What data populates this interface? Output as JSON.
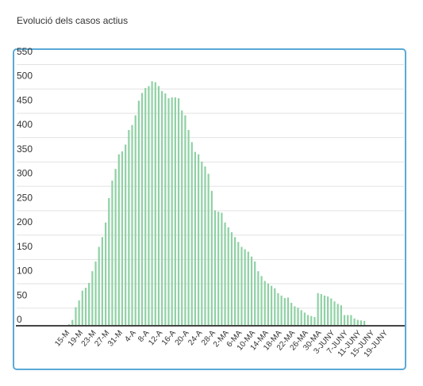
{
  "title": "Evolució dels casos actius",
  "chart_data": {
    "type": "bar",
    "title": "Evolució dels casos actius",
    "xlabel": "",
    "ylabel": "",
    "ylim": [
      0,
      550
    ],
    "yticks": [
      0,
      50,
      100,
      150,
      200,
      250,
      300,
      350,
      400,
      450,
      500,
      550
    ],
    "grid": true,
    "bar_color": "#8fd1a4",
    "x_tick_labels": [
      "15-M",
      "19-M",
      "23-M",
      "27-M",
      "31-M",
      "4-A",
      "8-A",
      "12-A",
      "16-A",
      "20-A",
      "24-A",
      "28-A",
      "2-MA",
      "6-MA",
      "10-MA",
      "14-MA",
      "18-MA",
      "22-MA",
      "26-MA",
      "30-MA",
      "3-JUNY",
      "7-JUNY",
      "11-JUNY",
      "15-JUNY",
      "19-JUNY"
    ],
    "values": [
      3,
      12,
      38,
      52,
      72,
      78,
      88,
      112,
      132,
      162,
      182,
      212,
      262,
      298,
      322,
      352,
      358,
      372,
      402,
      412,
      432,
      462,
      478,
      488,
      492,
      502,
      500,
      492,
      482,
      477,
      467,
      469,
      469,
      467,
      442,
      432,
      402,
      377,
      357,
      352,
      337,
      327,
      312,
      277,
      237,
      234,
      232,
      212,
      202,
      192,
      182,
      172,
      162,
      157,
      152,
      142,
      132,
      112,
      102,
      92,
      87,
      82,
      77,
      67,
      62,
      57,
      58,
      47,
      40,
      37,
      32,
      27,
      22,
      20,
      18,
      67,
      65,
      62,
      60,
      56,
      50,
      45,
      42,
      22,
      22,
      22,
      15,
      12,
      11,
      10
    ]
  }
}
